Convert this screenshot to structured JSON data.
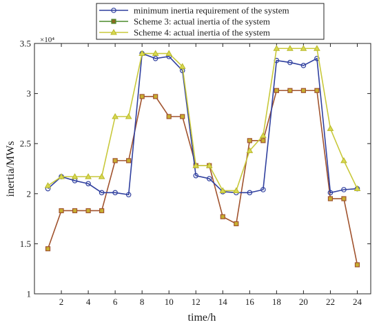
{
  "chart_data": {
    "type": "line",
    "xlabel": "time/h",
    "ylabel": "inertia/MWs",
    "y_exponent_label": "×10⁴",
    "xlim": [
      0,
      25
    ],
    "ylim": [
      1.0,
      3.5
    ],
    "grid": false,
    "legend_position": "top-center",
    "x_ticks": [
      2,
      4,
      6,
      8,
      10,
      12,
      14,
      16,
      18,
      20,
      22,
      24
    ],
    "y_ticks": [
      1,
      1.5,
      2,
      2.5,
      3,
      3.5
    ],
    "x": [
      1,
      2,
      3,
      4,
      5,
      6,
      7,
      8,
      9,
      10,
      11,
      12,
      13,
      14,
      15,
      16,
      17,
      18,
      19,
      20,
      21,
      22,
      23,
      24
    ],
    "series": [
      {
        "name": "minimum inertia requirement of the system",
        "color": "#2f3f9e",
        "marker": "circle",
        "values": [
          2.05,
          2.17,
          2.13,
          2.1,
          2.01,
          2.01,
          1.99,
          3.4,
          3.35,
          3.37,
          3.23,
          2.18,
          2.15,
          2.02,
          2.01,
          2.01,
          2.04,
          3.33,
          3.31,
          3.28,
          3.35,
          2.01,
          2.04,
          2.05
        ]
      },
      {
        "name": "Scheme 3: actual inertia of the system",
        "color": "#a0522d",
        "marker": "square",
        "values": [
          1.45,
          1.83,
          1.83,
          1.83,
          1.83,
          2.33,
          2.33,
          2.97,
          2.97,
          2.77,
          2.77,
          2.28,
          2.28,
          1.77,
          1.7,
          2.53,
          2.53,
          3.03,
          3.03,
          3.03,
          3.03,
          1.95,
          1.95,
          1.29
        ]
      },
      {
        "name": "Scheme 4: actual inertia of the system",
        "color": "#c8c83a",
        "marker": "triangle",
        "values": [
          2.08,
          2.17,
          2.17,
          2.17,
          2.17,
          2.77,
          2.77,
          3.4,
          3.4,
          3.4,
          3.27,
          2.28,
          2.28,
          2.03,
          2.03,
          2.43,
          2.58,
          3.45,
          3.45,
          3.45,
          3.45,
          2.65,
          2.33,
          2.05
        ]
      }
    ],
    "legend_marker_colors": [
      "#2f3f9e",
      "#4a8a2a",
      "#c8c83a"
    ]
  }
}
